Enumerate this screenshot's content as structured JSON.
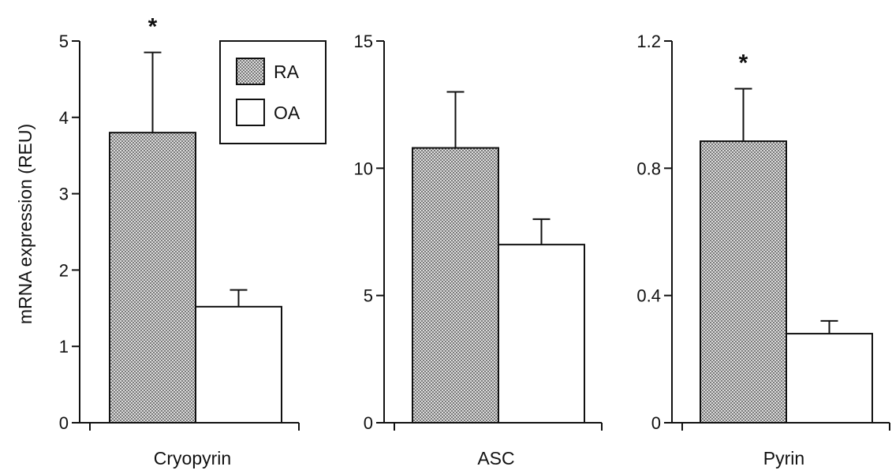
{
  "chart_data": [
    {
      "type": "bar",
      "category": "Cryopyrin",
      "ylabel": "mRNA expression (REU)",
      "ylim": [
        0,
        5
      ],
      "yticks": [
        0,
        1,
        2,
        3,
        4,
        5
      ],
      "ytick_labels": [
        "0",
        "1",
        "2",
        "3",
        "4",
        "5"
      ],
      "series": [
        {
          "name": "RA",
          "value": 3.8,
          "error": 1.05
        },
        {
          "name": "OA",
          "value": 1.52,
          "error": 0.22
        }
      ],
      "annotation": "*"
    },
    {
      "type": "bar",
      "category": "ASC",
      "ylabel": "",
      "ylim": [
        0,
        15
      ],
      "yticks": [
        0,
        5,
        10,
        15
      ],
      "ytick_labels": [
        "0",
        "5",
        "10",
        "15"
      ],
      "series": [
        {
          "name": "RA",
          "value": 10.8,
          "error": 2.2
        },
        {
          "name": "OA",
          "value": 7.0,
          "error": 1.0
        }
      ],
      "annotation": ""
    },
    {
      "type": "bar",
      "category": "Pyrin",
      "ylabel": "",
      "ylim": [
        0,
        1.2
      ],
      "yticks": [
        0,
        0.4,
        0.8,
        1.2
      ],
      "ytick_labels": [
        "0",
        "0.4",
        "0.8",
        "1.2"
      ],
      "series": [
        {
          "name": "RA",
          "value": 0.885,
          "error": 0.165
        },
        {
          "name": "OA",
          "value": 0.28,
          "error": 0.04
        }
      ],
      "annotation": "*"
    }
  ],
  "legend": {
    "placement": "inside-top-right-of-first-panel",
    "items": [
      {
        "label": "RA",
        "fill": "stippled"
      },
      {
        "label": "OA",
        "fill": "#ffffff"
      }
    ]
  },
  "colors": {
    "axis": "#111111",
    "bar_stroke": "#111111",
    "stipple_bg": "#dcdcdc",
    "stipple_dot": "#333333"
  }
}
